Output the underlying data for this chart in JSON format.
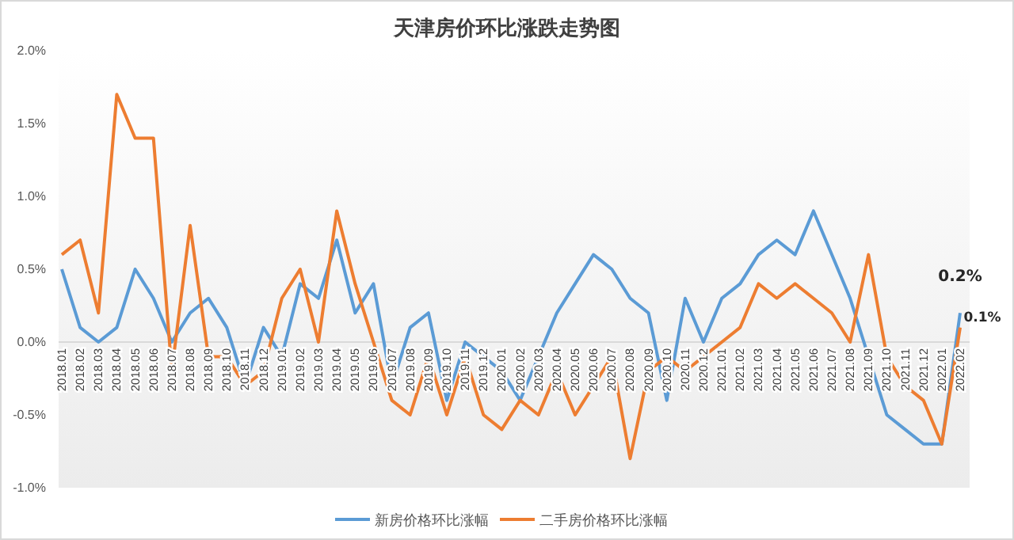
{
  "chart_data": {
    "type": "line",
    "title": "天津房价环比涨跌走势图",
    "categories": [
      "2018.01",
      "2018.02",
      "2018.03",
      "2018.04",
      "2018.05",
      "2018.06",
      "2018.07",
      "2018.08",
      "2018.09",
      "2018.10",
      "2018.11",
      "2018.12",
      "2019.01",
      "2019.02",
      "2019.03",
      "2019.04",
      "2019.05",
      "2019.06",
      "2019.07",
      "2019.08",
      "2019.09",
      "2019.10",
      "2019.11",
      "2019.12",
      "2020.01",
      "2020.02",
      "2020.03",
      "2020.04",
      "2020.05",
      "2020.06",
      "2020.07",
      "2020.08",
      "2020.09",
      "2020.10",
      "2020.11",
      "2020.12",
      "2021.01",
      "2021.02",
      "2021.03",
      "2021.04",
      "2021.05",
      "2021.06",
      "2021.07",
      "2021.08",
      "2021.09",
      "2021.10",
      "2021.11",
      "2021.12",
      "2022.01",
      "2022.02"
    ],
    "series": [
      {
        "name": "新房价格环比涨幅",
        "color": "#5b9bd5",
        "values": [
          0.5,
          0.1,
          0.0,
          0.1,
          0.5,
          0.3,
          0.0,
          0.2,
          0.3,
          0.1,
          -0.3,
          0.1,
          -0.1,
          0.4,
          0.3,
          0.7,
          0.2,
          0.4,
          -0.3,
          0.1,
          0.2,
          -0.4,
          0.0,
          -0.1,
          -0.2,
          -0.4,
          -0.1,
          0.2,
          0.4,
          0.6,
          0.5,
          0.3,
          0.2,
          -0.4,
          0.3,
          0.0,
          0.3,
          0.4,
          0.6,
          0.7,
          0.6,
          0.9,
          0.6,
          0.3,
          -0.1,
          -0.5,
          -0.6,
          -0.7,
          -0.7,
          0.2
        ],
        "value_labels": [
          null,
          null,
          null,
          null,
          null,
          null,
          null,
          null,
          null,
          null,
          null,
          null,
          null,
          null,
          null,
          null,
          null,
          null,
          null,
          null,
          null,
          null,
          null,
          null,
          null,
          null,
          null,
          null,
          null,
          null,
          null,
          null,
          null,
          null,
          null,
          null,
          null,
          null,
          null,
          null,
          null,
          null,
          null,
          null,
          null,
          null,
          null,
          null,
          null,
          "0.2%"
        ]
      },
      {
        "name": "二手房价格环比涨幅",
        "color": "#ed7d31",
        "values": [
          0.6,
          0.7,
          0.2,
          1.7,
          1.4,
          1.4,
          -0.2,
          0.8,
          -0.1,
          -0.1,
          -0.3,
          -0.2,
          0.3,
          0.5,
          0.0,
          0.9,
          0.4,
          0.0,
          -0.4,
          -0.5,
          -0.1,
          -0.5,
          -0.1,
          -0.5,
          -0.6,
          -0.4,
          -0.5,
          -0.2,
          -0.5,
          -0.3,
          -0.1,
          -0.8,
          -0.2,
          -0.1,
          -0.2,
          -0.1,
          0.0,
          0.1,
          0.4,
          0.3,
          0.4,
          0.3,
          0.2,
          0.0,
          0.6,
          -0.1,
          -0.3,
          -0.4,
          -0.7,
          0.1
        ],
        "value_labels": [
          null,
          null,
          null,
          null,
          null,
          null,
          null,
          null,
          null,
          null,
          null,
          null,
          null,
          null,
          null,
          null,
          null,
          null,
          null,
          null,
          null,
          null,
          null,
          null,
          null,
          null,
          null,
          null,
          null,
          null,
          null,
          null,
          null,
          null,
          null,
          null,
          null,
          null,
          null,
          null,
          null,
          null,
          null,
          null,
          null,
          null,
          null,
          null,
          null,
          "0.1%"
        ]
      }
    ],
    "ylim": [
      -1.0,
      2.0
    ],
    "yticks": [
      {
        "value": -1.0,
        "label": "-1.0%"
      },
      {
        "value": -0.5,
        "label": "-0.5%"
      },
      {
        "value": 0,
        "label": "0.0%"
      },
      {
        "value": 0.5,
        "label": "0.5%"
      },
      {
        "value": 1.0,
        "label": "1.0%"
      },
      {
        "value": 1.5,
        "label": "1.5%"
      },
      {
        "value": 2.0,
        "label": "2.0%"
      }
    ],
    "legend": "bottom",
    "marker": "none",
    "line_style": "solid"
  }
}
